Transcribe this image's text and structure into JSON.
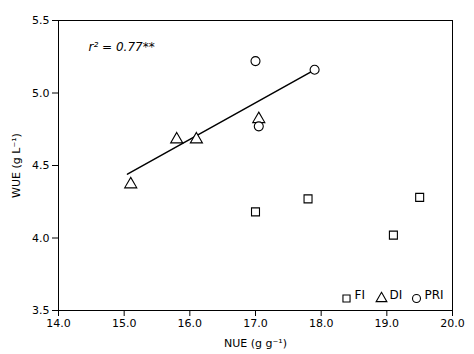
{
  "chart_data": {
    "type": "scatter",
    "annotation": "r² = 0.77**",
    "xlabel": "NUE (g g⁻¹)",
    "ylabel": "WUE (g L⁻¹)",
    "xlim": [
      14.0,
      20.0
    ],
    "ylim": [
      3.5,
      5.5
    ],
    "xticks": [
      {
        "value": 14.0,
        "label": "14.0"
      },
      {
        "value": 15.0,
        "label": "15.0"
      },
      {
        "value": 16.0,
        "label": "16.0"
      },
      {
        "value": 17.0,
        "label": "17.0"
      },
      {
        "value": 18.0,
        "label": "18.0"
      },
      {
        "value": 19.0,
        "label": "19.0"
      },
      {
        "value": 20.0,
        "label": "20.0"
      }
    ],
    "yticks": [
      3.5,
      {
        "value": 4.0,
        "label": "4.0"
      },
      4.5,
      {
        "value": 5.0,
        "label": "5.0"
      },
      5.5
    ],
    "grid": false,
    "legend": "lower right",
    "series": [
      {
        "name": "FI",
        "type": "scatter",
        "marker": "square",
        "color": "black",
        "x": [
          17.0,
          17.8,
          19.1,
          19.5
        ],
        "values": [
          4.18,
          4.27,
          4.02,
          4.28
        ]
      },
      {
        "name": "DI",
        "type": "scatter",
        "marker": "triangle",
        "color": "black",
        "x": [
          15.1,
          15.8,
          16.1,
          17.05
        ],
        "values": [
          4.37,
          4.68,
          4.68,
          4.82
        ]
      },
      {
        "name": "PRI",
        "type": "scatter",
        "marker": "circle",
        "color": "black",
        "x": [
          17.0,
          17.05,
          17.9
        ],
        "values": [
          5.22,
          4.77,
          5.16
        ]
      },
      {
        "type": "line",
        "line_style": "solid",
        "color": "black",
        "x": [
          15.05,
          17.9
        ],
        "values": [
          4.44,
          5.16
        ]
      }
    ]
  }
}
